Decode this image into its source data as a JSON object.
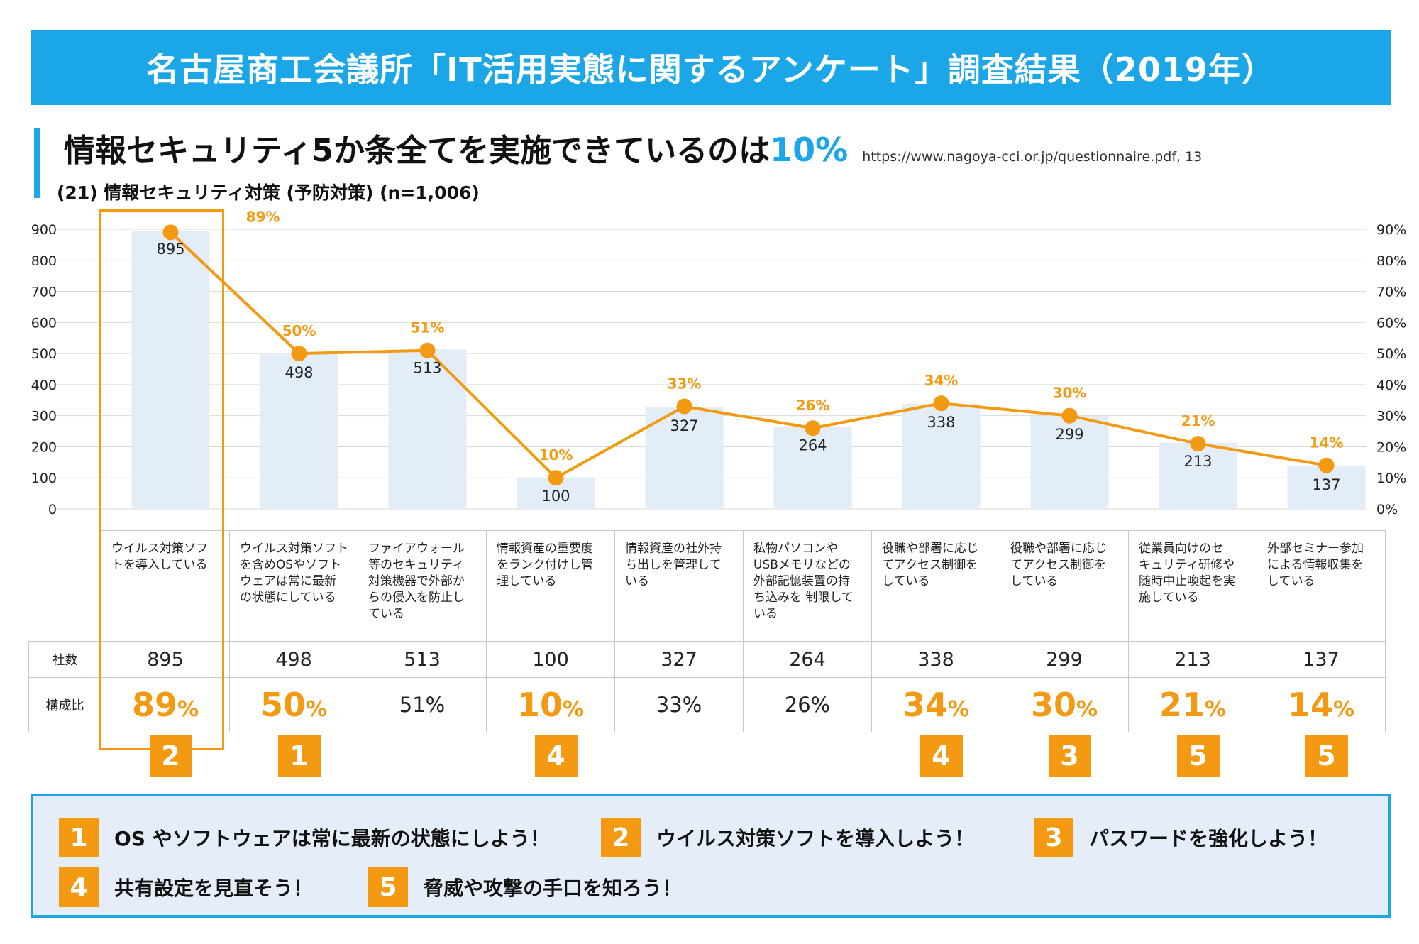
{
  "banner": {
    "title": "名古屋商工会議所「IT活用実態に関するアンケート」調査結果（2019年）"
  },
  "headline": {
    "text": "情報セキュリティ5か条全てを実施できているのは",
    "highlight": "10%",
    "source": "https://www.nagoya-cci.or.jp/questionnaire.pdf, 13"
  },
  "subtitle": "(21) 情報セキュリティ対策 (予防対策) (n=1,006)",
  "colors": {
    "accent_blue": "#1ba6e8",
    "accent_orange": "#f39a12",
    "bar_fill": "#e3edf8",
    "panel_bg": "#e5eef8"
  },
  "chart_data": {
    "type": "bar+line",
    "categories": [
      "ウイルス対策ソフトを導入している",
      "ウイルス対策ソフトを含めOSやソフトウェアは常に最新の状態にしている",
      "ファイアウォール等のセキュリティ対策機器で外部からの侵入を防止している",
      "情報資産の重要度をランク付けし管理している",
      "情報資産の社外持ち出しを管理している",
      "私物パソコンやUSBメモリなどの外部記憶装置の持ち込みを制限している",
      "役職や部署に応じてアクセス制御をしている",
      "役職や部署に応じてアクセス制御をしている",
      "従業員向けのセキュリティ研修や随時中止喚起を実施している",
      "外部セミナー参加による情報収集をしている"
    ],
    "series": [
      {
        "name": "社数",
        "type": "bar",
        "values": [
          895,
          498,
          513,
          100,
          327,
          264,
          338,
          299,
          213,
          137
        ]
      },
      {
        "name": "構成比",
        "type": "line",
        "values": [
          89,
          50,
          51,
          10,
          33,
          26,
          34,
          30,
          21,
          14
        ]
      }
    ],
    "bar_labels": [
      "895",
      "498",
      "513",
      "100",
      "327",
      "264",
      "338",
      "299",
      "213",
      "137"
    ],
    "pct_labels": [
      "89%",
      "50%",
      "51%",
      "10%",
      "33%",
      "26%",
      "34%",
      "30%",
      "21%",
      "14%"
    ],
    "y_left": {
      "range": [
        0,
        900
      ],
      "ticks": [
        "0",
        "100",
        "200",
        "300",
        "400",
        "500",
        "600",
        "700",
        "800",
        "900"
      ]
    },
    "y_right": {
      "range": [
        0,
        90
      ],
      "ticks": [
        "0%",
        "10%",
        "20%",
        "30%",
        "40%",
        "50%",
        "60%",
        "70%",
        "80%",
        "90%"
      ]
    },
    "grid": true
  },
  "table": {
    "row_headers": {
      "count": "社数",
      "ratio": "構成比"
    },
    "columns": [
      {
        "lines": [
          "ウイルス対策ソフ",
          "トを導入している"
        ],
        "count": "895",
        "pct_num": "89",
        "pct_unit": "%",
        "highlight": true
      },
      {
        "lines": [
          "ウイルス対策ソフト",
          "を含めOSやソフト",
          "ウェアは常に最新",
          "の状態にしている"
        ],
        "count": "498",
        "pct_num": "50",
        "pct_unit": "%",
        "highlight": true
      },
      {
        "lines": [
          "ファイアウォール",
          "等のセキュリティ",
          "対策機器で外部か",
          "らの侵入を防止し",
          "ている"
        ],
        "count": "513",
        "pct_num": "51",
        "pct_unit": "%",
        "highlight": false
      },
      {
        "lines": [
          "情報資産の重要度",
          "をランク付けし管",
          "理している"
        ],
        "count": "100",
        "pct_num": "10",
        "pct_unit": "%",
        "highlight": true
      },
      {
        "lines": [
          "情報資産の社外持",
          "ち出しを管理して",
          "いる"
        ],
        "count": "327",
        "pct_num": "33",
        "pct_unit": "%",
        "highlight": false
      },
      {
        "lines": [
          "私物パソコンや",
          "USBメモリなどの",
          "外部記憶装置の持",
          "ち込みを 制限して",
          "いる"
        ],
        "count": "264",
        "pct_num": "26",
        "pct_unit": "%",
        "highlight": false
      },
      {
        "lines": [
          "役職や部署に応じ",
          "てアクセス制御を",
          "している"
        ],
        "count": "338",
        "pct_num": "34",
        "pct_unit": "%",
        "highlight": true
      },
      {
        "lines": [
          "役職や部署に応じ",
          "てアクセス制御を",
          "している"
        ],
        "count": "299",
        "pct_num": "30",
        "pct_unit": "%",
        "highlight": true
      },
      {
        "lines": [
          "従業員向けのセ",
          "キュリティ研修や",
          "随時中止喚起を実",
          "施している"
        ],
        "count": "213",
        "pct_num": "21",
        "pct_unit": "%",
        "highlight": true
      },
      {
        "lines": [
          "外部セミナー参加",
          "による情報収集を",
          "している"
        ],
        "count": "137",
        "pct_num": "14",
        "pct_unit": "%",
        "highlight": true
      }
    ]
  },
  "badges": [
    "2",
    "1",
    "",
    "4",
    "",
    "",
    "4",
    "3",
    "5",
    "5"
  ],
  "tips": [
    {
      "num": "1",
      "text": "OS やソフトウェアは常に最新の状態にしよう！"
    },
    {
      "num": "2",
      "text": "ウイルス対策ソフトを導入しよう！"
    },
    {
      "num": "3",
      "text": "パスワードを強化しよう！"
    },
    {
      "num": "4",
      "text": "共有設定を見直そう！"
    },
    {
      "num": "5",
      "text": "脅威や攻撃の手口を知ろう！"
    }
  ]
}
